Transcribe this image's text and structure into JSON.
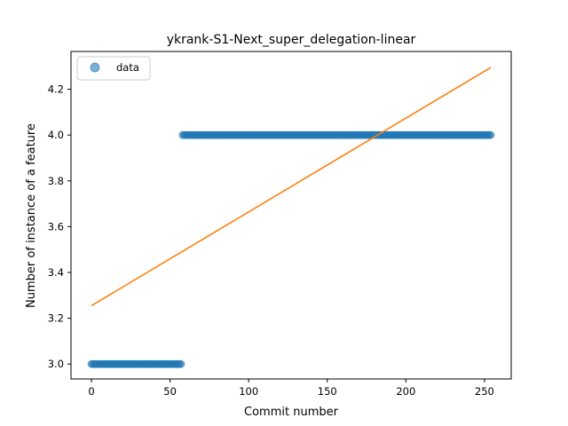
{
  "chart_data": {
    "type": "scatter",
    "title": "ykrank-S1-Next_super_delegation-linear",
    "xlabel": "Commit number",
    "ylabel": "Number of instance of a feature",
    "xlim": [
      -13,
      267
    ],
    "ylim": [
      2.935,
      4.365
    ],
    "xticks": [
      0,
      50,
      100,
      150,
      200,
      250
    ],
    "yticks": [
      3.0,
      3.2,
      3.4,
      3.6,
      3.8,
      4.0,
      4.2
    ],
    "ytick_labels": [
      "3.0",
      "3.2",
      "3.4",
      "3.6",
      "3.8",
      "4.0",
      "4.2"
    ],
    "grid": false,
    "legend": {
      "position": "top-left",
      "entries": [
        "data"
      ]
    },
    "series": [
      {
        "name": "data",
        "kind": "scatter",
        "color": "#1f77b4",
        "segments": [
          {
            "x_from": 0,
            "x_to": 57,
            "y": 3.0
          },
          {
            "x_from": 58,
            "x_to": 254,
            "y": 4.0
          }
        ]
      },
      {
        "kind": "line",
        "color": "#ff7f0e",
        "x": [
          0,
          254
        ],
        "y": [
          3.255,
          4.295
        ]
      }
    ]
  }
}
